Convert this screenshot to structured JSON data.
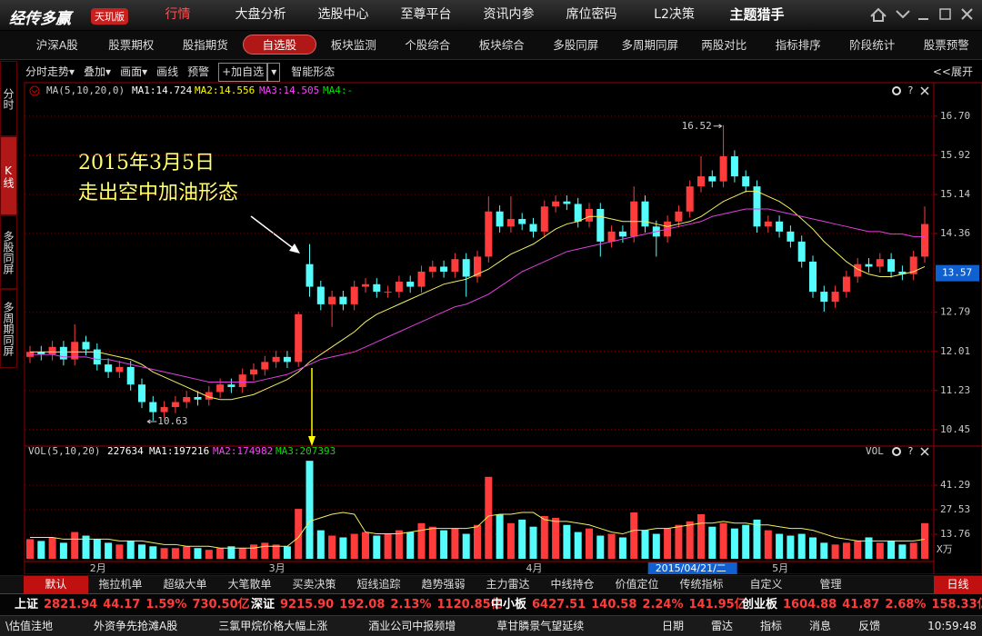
{
  "app": {
    "logo": "经传多赢",
    "edition": "天玑版",
    "nav_tabs": [
      "行情",
      "大盘分析",
      "选股中心",
      "至尊平台",
      "资讯内参",
      "席位密码",
      "L2决策",
      "主题猎手"
    ],
    "sub_tabs": [
      "沪深A股",
      "股票期权",
      "股指期货",
      "自选股",
      "板块监测",
      "个股综合",
      "板块综合",
      "多股同屏",
      "多周期同屏",
      "两股对比",
      "指标排序",
      "阶段统计",
      "股票预警"
    ],
    "side_tabs": [
      "分时",
      "K线",
      "多股同屏",
      "多周期同屏"
    ],
    "toolbar": [
      "分时走势▾",
      "叠加▾",
      "画面▾",
      "画线",
      "预警",
      "+加自选",
      "智能形态"
    ],
    "expand": "<<展开",
    "bottom_tabs": [
      "默认",
      "拖拉机单",
      "超级大单",
      "大笔散单",
      "买卖决策",
      "短线追踪",
      "趋势强弱",
      "主力雷达",
      "中线持仓",
      "价值定位",
      "传统指标",
      "自定义",
      "管理"
    ],
    "period": "日线",
    "indices": [
      {
        "name": "上证",
        "values": [
          "2821.94",
          "44.17",
          "1.59%",
          "730.50亿"
        ]
      },
      {
        "name": "深证",
        "values": [
          "9215.90",
          "192.08",
          "2.13%",
          "1120.85亿"
        ]
      },
      {
        "name": "中小板",
        "values": [
          "6427.51",
          "140.58",
          "2.24%",
          "141.95亿"
        ]
      },
      {
        "name": "创业板",
        "values": [
          "1604.88",
          "41.87",
          "2.68%",
          "158.33亿"
        ]
      }
    ],
    "ticker": [
      "\\估值洼地",
      "外资争先抢滩A股",
      "三氯甲烷价格大幅上涨",
      "酒业公司中报频增",
      "草甘膦景气望延续"
    ],
    "status": [
      "日期",
      "雷达",
      "指标",
      "消息",
      "反馈"
    ],
    "clock": "10:59:48"
  },
  "chart_data": {
    "type": "candlestick",
    "annotation": [
      "2015年3月5日",
      "走出空中加油形态"
    ],
    "help_icon": "?",
    "ma_legend": {
      "label": "MA(5,10,20,0)",
      "items": [
        "MA1:14.724",
        "MA2:14.556",
        "MA3:14.505",
        "MA4:-"
      ],
      "colors": [
        "#ffffff",
        "#ffff00",
        "#ff40ff",
        "#00e000"
      ]
    },
    "categories": [
      null,
      null,
      null,
      null,
      null,
      null,
      "2月",
      null,
      null,
      null,
      null,
      null,
      null,
      null,
      null,
      null,
      null,
      null,
      null,
      null,
      null,
      null,
      "3月",
      null,
      null,
      null,
      null,
      null,
      null,
      null,
      null,
      null,
      null,
      null,
      null,
      null,
      null,
      null,
      null,
      null,
      null,
      null,
      null,
      null,
      null,
      "4月",
      null,
      null,
      null,
      null,
      null,
      null,
      null,
      null,
      null,
      null,
      null,
      null,
      null,
      null,
      null,
      null,
      null,
      null,
      null,
      null,
      null,
      "5月",
      null,
      null,
      null,
      null,
      null,
      null,
      null,
      null,
      null,
      null,
      null,
      null,
      null
    ],
    "cursor_label": "2015/04/21/二",
    "open": [
      11.9,
      12.0,
      11.95,
      12.1,
      11.85,
      12.2,
      12.05,
      11.75,
      11.6,
      11.7,
      11.35,
      11.0,
      10.8,
      10.9,
      11.0,
      11.1,
      11.05,
      11.2,
      11.35,
      11.3,
      11.55,
      11.65,
      11.8,
      11.9,
      11.8,
      13.75,
      13.3,
      12.95,
      13.1,
      12.95,
      13.3,
      13.35,
      13.2,
      13.2,
      13.4,
      13.3,
      13.6,
      13.7,
      13.6,
      13.85,
      13.5,
      13.9,
      14.8,
      14.5,
      14.65,
      14.55,
      14.4,
      14.9,
      15.0,
      14.95,
      14.6,
      14.85,
      14.2,
      14.4,
      14.3,
      15.0,
      14.5,
      14.3,
      14.6,
      14.8,
      15.3,
      15.5,
      15.4,
      15.9,
      15.5,
      15.3,
      14.5,
      14.6,
      14.4,
      14.2,
      13.8,
      13.2,
      13.0,
      13.2,
      13.5,
      13.75,
      13.7,
      13.85,
      13.6,
      13.55,
      13.9
    ],
    "high": [
      12.12,
      12.12,
      12.22,
      12.22,
      12.55,
      12.32,
      12.17,
      11.87,
      11.82,
      11.82,
      11.47,
      11.12,
      11.02,
      11.12,
      11.22,
      11.22,
      11.32,
      11.47,
      11.47,
      11.67,
      11.77,
      11.92,
      12.02,
      12.02,
      12.8,
      14.15,
      13.42,
      13.22,
      13.22,
      13.42,
      13.47,
      13.47,
      13.32,
      13.52,
      13.52,
      13.72,
      13.82,
      13.82,
      13.97,
      13.97,
      14.02,
      15.1,
      14.92,
      15.1,
      14.77,
      14.67,
      15.02,
      15.12,
      15.12,
      15.07,
      14.97,
      14.97,
      14.52,
      14.52,
      15.3,
      15.12,
      14.62,
      14.72,
      14.92,
      15.42,
      15.9,
      15.62,
      16.52,
      16.02,
      15.62,
      15.42,
      14.72,
      14.72,
      14.52,
      14.32,
      13.92,
      13.32,
      13.32,
      13.62,
      13.87,
      13.87,
      13.97,
      13.97,
      13.72,
      14.02,
      14.9
    ],
    "low": [
      11.78,
      11.83,
      11.83,
      11.73,
      11.73,
      11.93,
      11.63,
      11.48,
      11.48,
      11.23,
      10.88,
      10.63,
      10.68,
      10.78,
      10.88,
      10.93,
      10.93,
      11.08,
      11.18,
      11.18,
      11.43,
      11.53,
      11.68,
      11.68,
      11.7,
      13.1,
      12.83,
      12.5,
      12.83,
      12.83,
      13.18,
      13.08,
      13.08,
      13.08,
      13.18,
      13.18,
      13.48,
      13.48,
      13.48,
      13.1,
      13.38,
      13.78,
      14.38,
      14.38,
      14.43,
      14.28,
      14.28,
      14.78,
      14.83,
      14.48,
      14.48,
      13.9,
      14.08,
      14.18,
      14.18,
      14.38,
      13.9,
      14.18,
      14.48,
      14.68,
      15.18,
      15.28,
      15.28,
      15.38,
      15.18,
      14.38,
      14.38,
      14.28,
      14.08,
      13.68,
      13.08,
      12.8,
      12.88,
      13.08,
      13.38,
      13.58,
      13.58,
      13.48,
      13.43,
      13.43,
      13.78
    ],
    "close": [
      12.0,
      11.95,
      12.1,
      11.85,
      12.2,
      12.05,
      11.75,
      11.6,
      11.7,
      11.35,
      11.0,
      10.8,
      10.9,
      11.0,
      11.1,
      11.05,
      11.2,
      11.35,
      11.3,
      11.55,
      11.65,
      11.8,
      11.9,
      11.8,
      12.75,
      13.3,
      12.95,
      13.1,
      12.95,
      13.3,
      13.35,
      13.2,
      13.2,
      13.4,
      13.3,
      13.6,
      13.7,
      13.6,
      13.85,
      13.5,
      13.9,
      14.8,
      14.5,
      14.65,
      14.55,
      14.4,
      14.9,
      15.0,
      14.95,
      14.6,
      14.85,
      14.2,
      14.4,
      14.3,
      15.0,
      14.5,
      14.3,
      14.6,
      14.8,
      15.3,
      15.5,
      15.4,
      15.9,
      15.5,
      15.3,
      14.5,
      14.6,
      14.4,
      14.2,
      13.8,
      13.2,
      13.0,
      13.2,
      13.5,
      13.75,
      13.7,
      13.85,
      13.6,
      13.55,
      13.9,
      14.55
    ],
    "up_color": "#ff3c3c",
    "down_color": "#54fcfc",
    "series": [
      {
        "color": "#f0f060",
        "values": [
          12.0,
          12.0,
          12.0,
          12.0,
          12.0,
          12.0,
          12.0,
          11.95,
          11.9,
          11.85,
          11.75,
          11.6,
          11.5,
          11.4,
          11.3,
          11.2,
          11.1,
          11.05,
          11.05,
          11.1,
          11.15,
          11.25,
          11.35,
          11.45,
          11.6,
          11.8,
          11.95,
          12.1,
          12.25,
          12.4,
          12.6,
          12.75,
          12.85,
          12.95,
          13.05,
          13.15,
          13.25,
          13.35,
          13.4,
          13.45,
          13.55,
          13.65,
          13.8,
          13.95,
          14.05,
          14.15,
          14.3,
          14.45,
          14.55,
          14.6,
          14.7,
          14.7,
          14.65,
          14.6,
          14.6,
          14.6,
          14.55,
          14.5,
          14.55,
          14.6,
          14.7,
          14.85,
          15.0,
          15.1,
          15.2,
          15.2,
          15.1,
          15.0,
          14.85,
          14.65,
          14.45,
          14.2,
          14.0,
          13.8,
          13.65,
          13.55,
          13.5,
          13.5,
          13.55,
          13.6,
          13.7
        ]
      },
      {
        "color": "#e040e0",
        "values": [
          11.95,
          11.95,
          11.95,
          11.9,
          11.9,
          11.9,
          11.85,
          11.85,
          11.8,
          11.75,
          11.7,
          11.65,
          11.6,
          11.55,
          11.5,
          11.45,
          11.4,
          11.4,
          11.4,
          11.4,
          11.4,
          11.45,
          11.5,
          11.55,
          11.65,
          11.75,
          11.85,
          11.9,
          11.95,
          12.0,
          12.1,
          12.2,
          12.3,
          12.4,
          12.5,
          12.6,
          12.7,
          12.8,
          12.9,
          12.95,
          13.05,
          13.15,
          13.3,
          13.45,
          13.6,
          13.7,
          13.8,
          13.9,
          14.0,
          14.05,
          14.1,
          14.15,
          14.2,
          14.25,
          14.3,
          14.35,
          14.4,
          14.45,
          14.5,
          14.55,
          14.6,
          14.7,
          14.75,
          14.8,
          14.85,
          14.85,
          14.85,
          14.8,
          14.75,
          14.7,
          14.65,
          14.6,
          14.55,
          14.5,
          14.45,
          14.4,
          14.4,
          14.35,
          14.35,
          14.3,
          14.3
        ]
      }
    ],
    "ylim": [
      10.14,
      17.06
    ],
    "yticks": [
      {
        "value": 16.7,
        "label": "16.70"
      },
      15.92,
      15.14,
      14.36,
      12.79,
      12.01,
      11.23,
      10.45
    ],
    "grid": true,
    "current_price": 13.57,
    "volume": {
      "label": "VOL(5,10,20)",
      "legend": [
        "227634",
        "MA1:197216",
        "MA2:174982",
        "MA3:207393"
      ],
      "legend_colors": [
        "#ffffff",
        "#ffffff",
        "#ff40ff",
        "#00e000"
      ],
      "title": "VOL",
      "unit": "X万",
      "values": [
        11,
        10,
        12,
        9,
        15,
        13,
        11,
        9,
        8,
        10,
        8,
        7,
        6,
        6,
        7,
        6,
        5,
        6,
        7,
        6,
        8,
        9,
        8,
        7,
        28,
        55,
        16,
        13,
        12,
        14,
        15,
        13,
        14,
        16,
        15,
        20,
        18,
        16,
        17,
        14,
        19,
        46,
        25,
        20,
        22,
        18,
        24,
        23,
        19,
        15,
        17,
        13,
        14,
        12,
        26,
        16,
        14,
        17,
        19,
        21,
        25,
        18,
        20,
        17,
        19,
        22,
        16,
        14,
        13,
        14,
        12,
        9,
        8,
        9,
        10,
        12,
        9,
        10,
        8,
        9,
        20
      ],
      "series": [
        {
          "color": "#f0f060",
          "values": [
            12,
            12,
            12,
            11,
            11,
            11,
            11,
            11,
            10,
            10,
            10,
            9,
            8,
            8,
            7,
            7,
            7,
            6,
            6,
            6,
            6,
            7,
            7,
            7,
            12,
            21,
            23,
            25,
            26,
            25,
            15,
            14,
            14,
            14,
            15,
            16,
            17,
            17,
            17,
            17,
            18,
            24,
            25,
            25,
            26,
            26,
            22,
            21,
            21,
            20,
            19,
            17,
            15,
            14,
            16,
            16,
            17,
            17,
            18,
            19,
            20,
            20,
            21,
            20,
            20,
            19,
            19,
            18,
            17,
            17,
            16,
            14,
            12,
            11,
            10,
            10,
            10,
            10,
            10,
            10,
            11
          ]
        }
      ],
      "ylim": [
        0,
        56.1
      ],
      "yticks": [
        41.29,
        27.53,
        13.76
      ]
    }
  }
}
